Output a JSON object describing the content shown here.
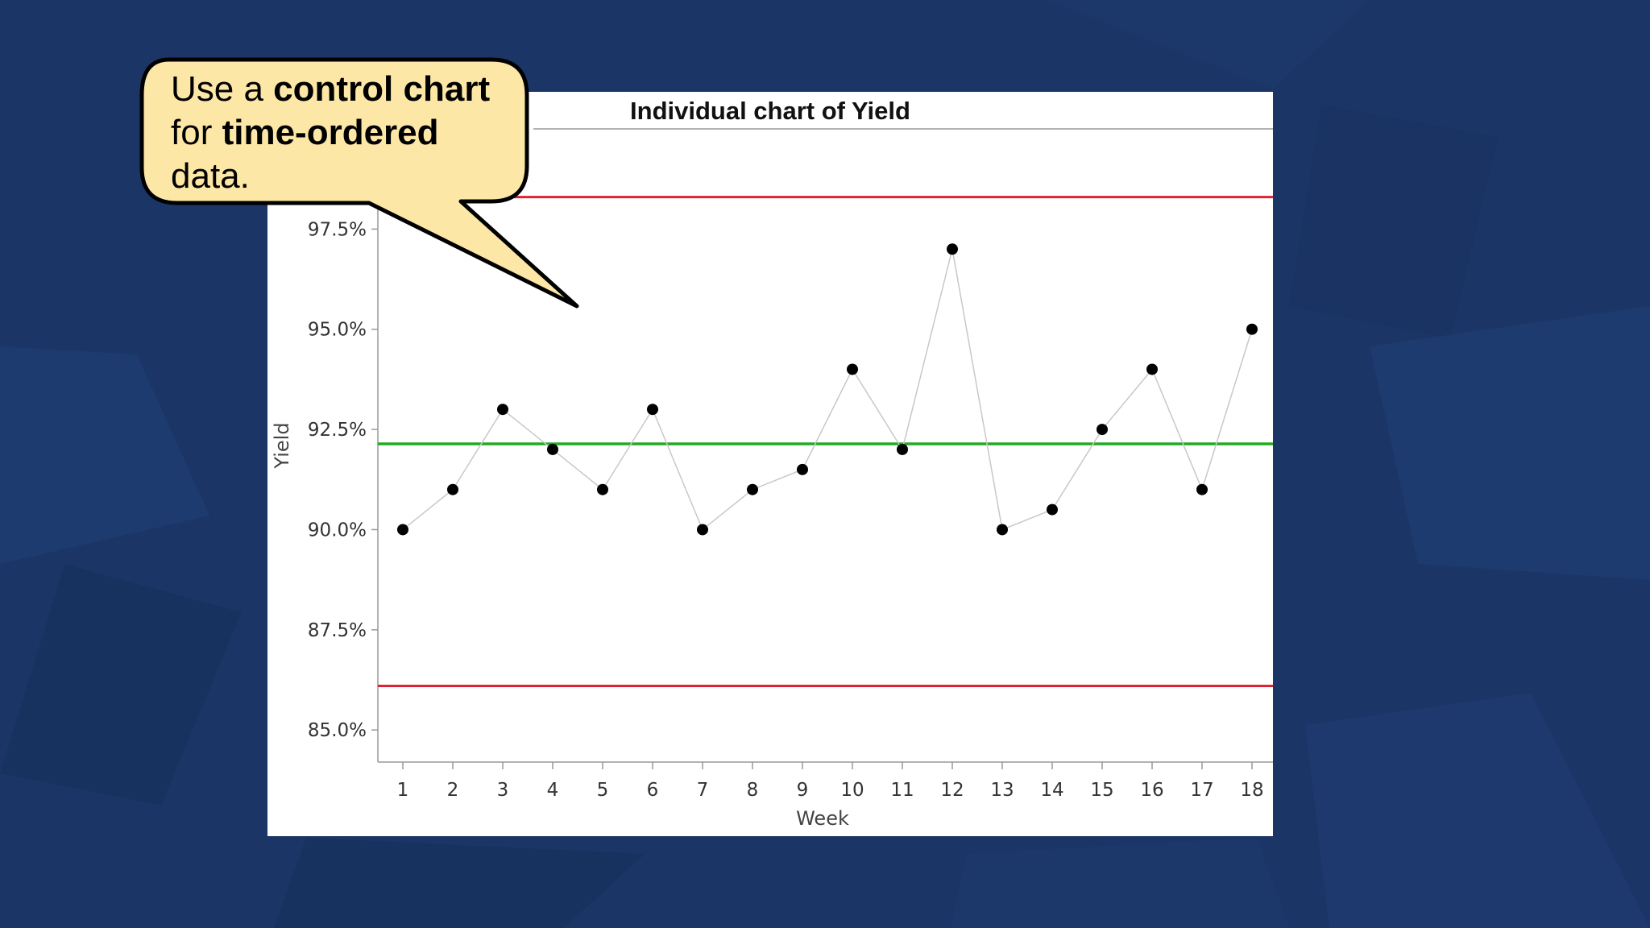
{
  "callout": {
    "part1": "Use a ",
    "bold1": "control chart",
    "part2": " for ",
    "bold2": "time-ordered",
    "part3": " data."
  },
  "chart_data": {
    "type": "line",
    "title": "Individual chart of Yield",
    "xlabel": "Week",
    "ylabel": "Yield",
    "x": [
      1,
      2,
      3,
      4,
      5,
      6,
      7,
      8,
      9,
      10,
      11,
      12,
      13,
      14,
      15,
      16,
      17,
      18
    ],
    "y": [
      90.0,
      91.0,
      93.0,
      92.0,
      91.0,
      93.0,
      90.0,
      91.0,
      91.5,
      94.0,
      92.0,
      97.0,
      90.0,
      90.5,
      92.5,
      94.0,
      91.0,
      95.0
    ],
    "yticks": [
      "85.0%",
      "87.5%",
      "90.0%",
      "92.5%",
      "95.0%",
      "97.5%"
    ],
    "ytick_values": [
      85.0,
      87.5,
      90.0,
      92.5,
      95.0,
      97.5
    ],
    "ylim": [
      84.2,
      100.0
    ],
    "xlim": [
      0.5,
      18.5
    ],
    "center_line": 92.14,
    "upper_control_limit": 98.3,
    "lower_control_limit": 86.1,
    "colors": {
      "center_line": "#22aa22",
      "control_limits": "#dd2233",
      "connector": "#c8c8c8",
      "points": "#000000"
    },
    "grid": false,
    "legend": "none"
  }
}
